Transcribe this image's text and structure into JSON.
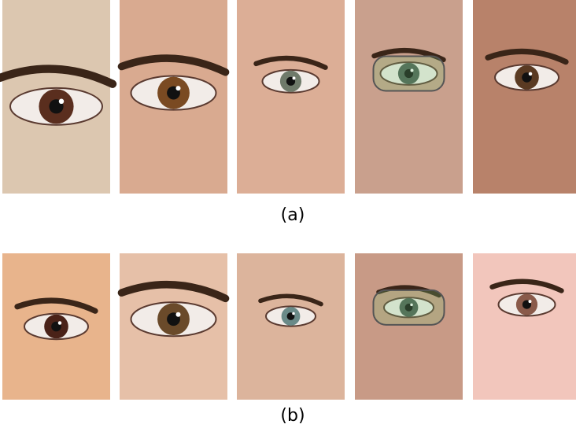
{
  "figure": {
    "rows": [
      {
        "label": "(a)"
      },
      {
        "label": "(b)"
      }
    ]
  }
}
